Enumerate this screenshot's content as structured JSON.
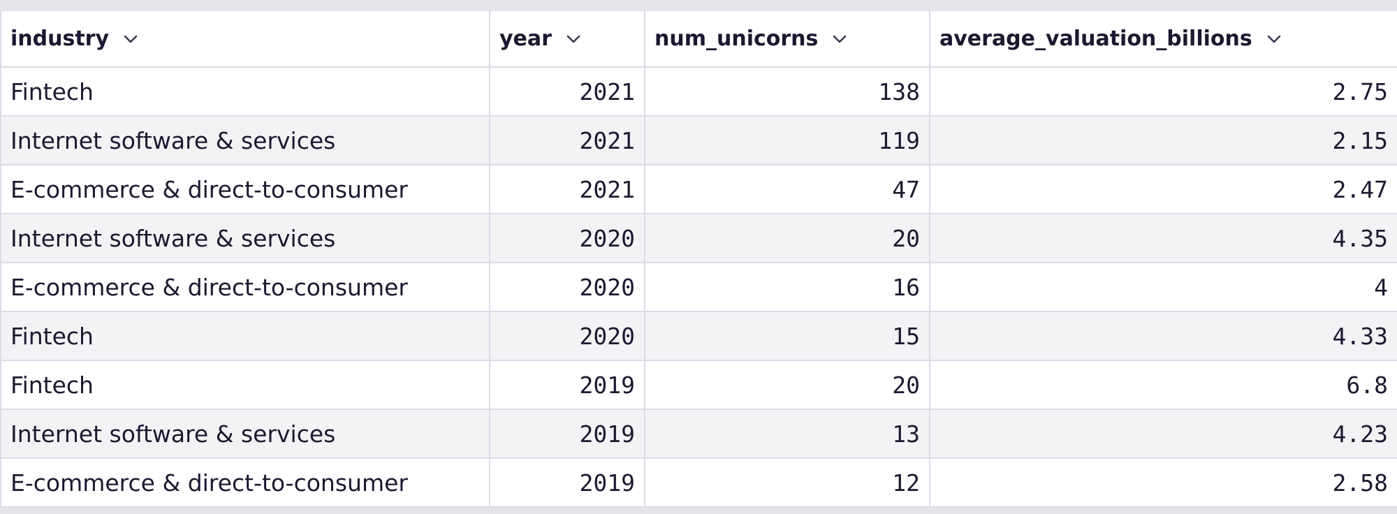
{
  "table": {
    "columns": [
      {
        "label": "industry",
        "icon": "chevron-down-icon"
      },
      {
        "label": "year",
        "icon": "chevron-down-icon"
      },
      {
        "label": "num_unicorns",
        "icon": "chevron-down-icon"
      },
      {
        "label": "average_valuation_billions",
        "icon": "chevron-down-icon"
      }
    ],
    "rows": [
      [
        "Fintech",
        "2021",
        "138",
        "2.75"
      ],
      [
        "Internet software & services",
        "2021",
        "119",
        "2.15"
      ],
      [
        "E-commerce & direct-to-consumer",
        "2021",
        "47",
        "2.47"
      ],
      [
        "Internet software & services",
        "2020",
        "20",
        "4.35"
      ],
      [
        "E-commerce & direct-to-consumer",
        "2020",
        "16",
        "4"
      ],
      [
        "Fintech",
        "2020",
        "15",
        "4.33"
      ],
      [
        "Fintech",
        "2019",
        "20",
        "6.8"
      ],
      [
        "Internet software & services",
        "2019",
        "13",
        "4.23"
      ],
      [
        "E-commerce & direct-to-consumer",
        "2019",
        "12",
        "2.58"
      ]
    ]
  },
  "colors": {
    "text": "#1a1930",
    "grid_line": "#dddbe8",
    "stripe": "#f3f3f6",
    "border_band": "#e4e4ea"
  }
}
